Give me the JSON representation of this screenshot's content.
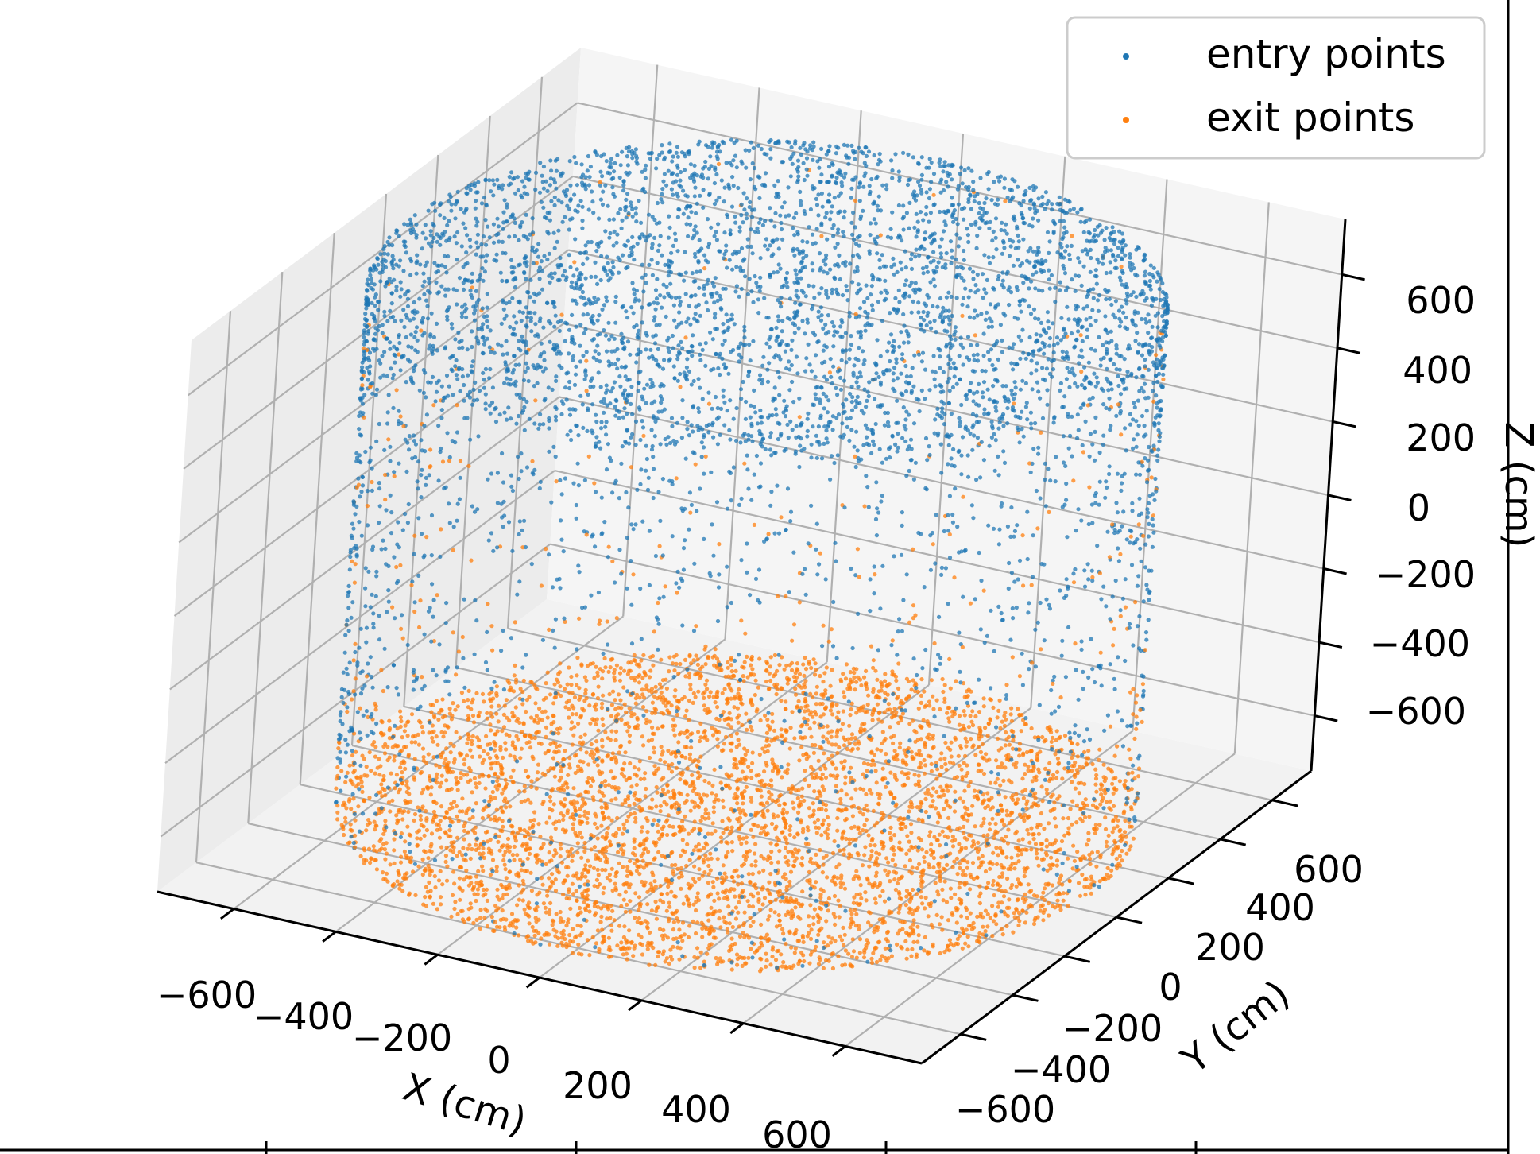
{
  "chart_data": {
    "type": "scatter",
    "projection": "3d",
    "title": "",
    "xlabel": "X (cm)",
    "ylabel": "Y (cm)",
    "zlabel": "Z (cm)",
    "xlim": [
      -750,
      750
    ],
    "ylim": [
      -750,
      750
    ],
    "zlim": [
      -750,
      750
    ],
    "xticks": [
      -600,
      -400,
      -200,
      0,
      200,
      400,
      600
    ],
    "yticks": [
      -600,
      -400,
      -200,
      0,
      200,
      400,
      600
    ],
    "zticks": [
      -600,
      -400,
      -200,
      0,
      200,
      400,
      600
    ],
    "xtick_labels": [
      "−600",
      "−400",
      "−200",
      "0",
      "200",
      "400",
      "600"
    ],
    "ytick_labels": [
      "−600",
      "−400",
      "−200",
      "0",
      "200",
      "400",
      "600"
    ],
    "ztick_labels": [
      "−600",
      "−400",
      "−200",
      "0",
      "200",
      "400",
      "600"
    ],
    "grid": true,
    "legend_position": "top-right",
    "detector_shape": {
      "geometry": "cylinder",
      "radius_cm": 700,
      "z_min_cm": -700,
      "z_max_cm": 700
    },
    "series": [
      {
        "name": "entry points",
        "color": "#1f77b4",
        "approx_count": 15000,
        "distribution": "mostly top cap (z = 700) and upper side wall, thinning toward the bottom"
      },
      {
        "name": "exit points",
        "color": "#ff7f0e",
        "approx_count": 15000,
        "distribution": "mostly bottom cap (z = -700), sparse on the side walls"
      }
    ]
  }
}
